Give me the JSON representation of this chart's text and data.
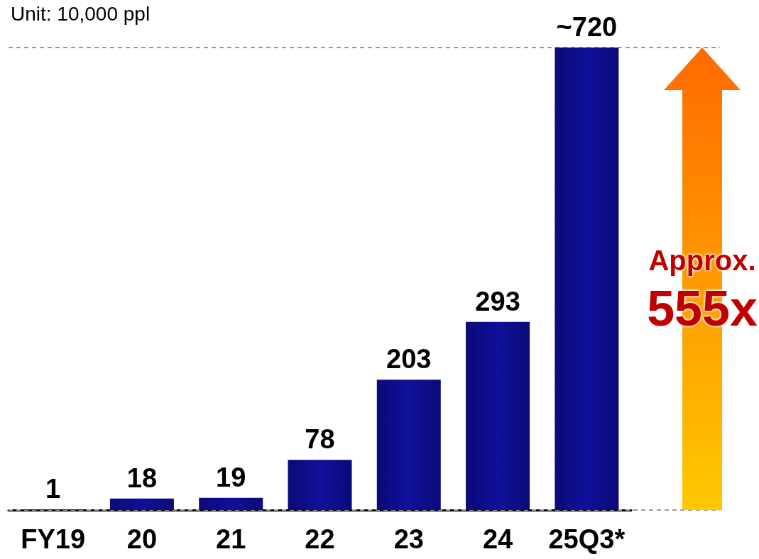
{
  "chart_data": {
    "type": "bar",
    "subtitle": "Unit: 10,000 ppl",
    "categories": [
      "FY19",
      "20",
      "21",
      "22",
      "23",
      "24",
      "25Q3*"
    ],
    "values": [
      1,
      18,
      19,
      78,
      203,
      293,
      720
    ],
    "value_labels": [
      "1",
      "18",
      "19",
      "78",
      "203",
      "293",
      "~720"
    ],
    "color": "#0a0a78",
    "ref_lines": [
      {
        "axis": "y",
        "value": 720,
        "color": "#999999",
        "line_style": "dashed"
      },
      {
        "axis": "y",
        "value": 0,
        "color": "#999999",
        "line_style": "dashed"
      }
    ],
    "annotations": [
      "Approx.",
      "555x"
    ],
    "grid": false
  }
}
